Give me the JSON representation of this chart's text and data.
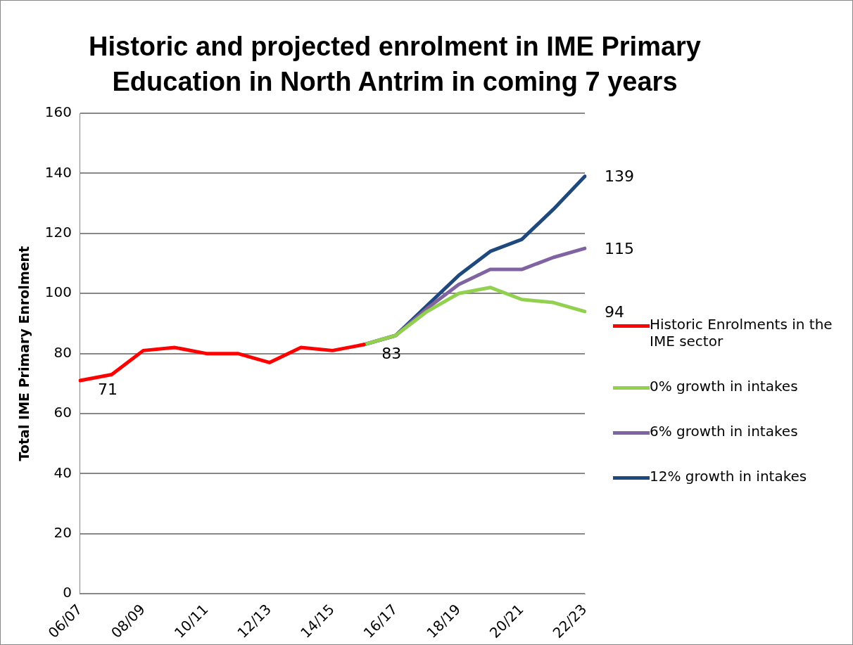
{
  "chart_data": {
    "type": "line",
    "title": "Historic and projected enrolment in IME Primary Education in North Antrim in coming 7 years",
    "ylabel": "Total IME Primary Enrolment",
    "categories": [
      "06/07",
      null,
      "08/09",
      null,
      "10/11",
      null,
      "12/13",
      null,
      "14/15",
      null,
      "16/17",
      null,
      "18/19",
      null,
      "20/21",
      null,
      "22/23"
    ],
    "series": [
      {
        "name": "Historic Enrolments in the IME sector",
        "color": "#ff0000",
        "values": [
          71,
          73,
          81,
          82,
          80,
          80,
          77,
          82,
          81,
          83,
          null,
          null,
          null,
          null,
          null,
          null,
          null
        ],
        "value_labels": [
          "71",
          null,
          null,
          null,
          null,
          null,
          null,
          null,
          null,
          "83",
          null,
          null,
          null,
          null,
          null,
          null,
          null
        ]
      },
      {
        "name": "0% growth in intakes",
        "color": "#92d050",
        "values": [
          null,
          null,
          null,
          null,
          null,
          null,
          null,
          null,
          null,
          83,
          86,
          94,
          100,
          102,
          98,
          97,
          94
        ],
        "value_labels": [
          null,
          null,
          null,
          null,
          null,
          null,
          null,
          null,
          null,
          null,
          null,
          null,
          null,
          null,
          null,
          null,
          "94"
        ]
      },
      {
        "name": "6% growth in intakes",
        "color": "#8064a2",
        "values": [
          null,
          null,
          null,
          null,
          null,
          null,
          null,
          null,
          null,
          83,
          86,
          95,
          103,
          108,
          108,
          112,
          115
        ],
        "value_labels": [
          null,
          null,
          null,
          null,
          null,
          null,
          null,
          null,
          null,
          null,
          null,
          null,
          null,
          null,
          null,
          null,
          "115"
        ]
      },
      {
        "name": "12% growth in intakes",
        "color": "#1f497d",
        "values": [
          null,
          null,
          null,
          null,
          null,
          null,
          null,
          null,
          null,
          83,
          86,
          96,
          106,
          114,
          118,
          128,
          139
        ],
        "value_labels": [
          null,
          null,
          null,
          null,
          null,
          null,
          null,
          null,
          null,
          null,
          null,
          null,
          null,
          null,
          null,
          null,
          "139"
        ]
      }
    ],
    "ylim": [
      0,
      160
    ],
    "yticks": [
      0,
      20,
      40,
      60,
      80,
      100,
      120,
      140,
      160
    ],
    "grid": "y",
    "legend": "right",
    "marker": "none",
    "line_style": "solid"
  }
}
